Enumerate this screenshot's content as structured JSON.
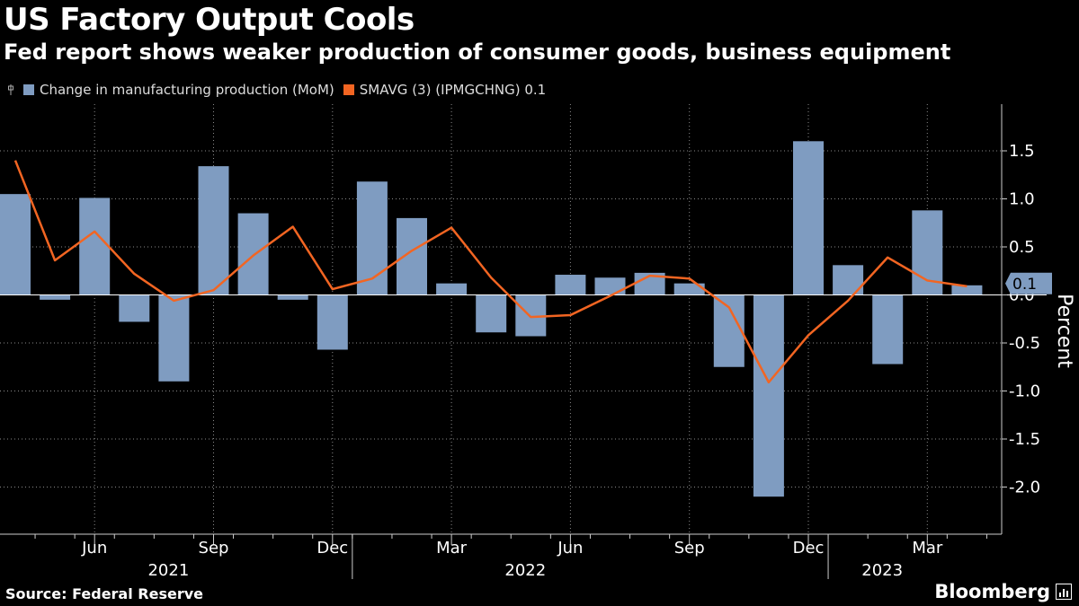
{
  "header": {
    "title": "US Factory Output Cools",
    "subtitle": "Fed report shows weaker production of consumer goods, business equipment"
  },
  "legend": {
    "series1": "Change in manufacturing production (MoM)",
    "series2": "SMAVG (3) (IPMGCHNG) 0.1"
  },
  "footer": {
    "source": "Source: Federal Reserve",
    "brand": "Bloomberg"
  },
  "colors": {
    "bar": "#7f9cc1",
    "line": "#f26522",
    "grid": "#8a8a8a",
    "bg": "#000000"
  },
  "chart_data": {
    "type": "bar",
    "title": "US Factory Output Cools",
    "ylabel": "Percent",
    "ylim": [
      -2.5,
      2.0
    ],
    "yticks": [
      1.5,
      1.0,
      0.5,
      0.0,
      -0.5,
      -1.0,
      -1.5,
      -2.0
    ],
    "ytick_labels": [
      "1.5",
      "1.0",
      "0.5",
      "0.0",
      "-0.5",
      "-1.0",
      "-1.5",
      "-2.0"
    ],
    "months": [
      "2021-04",
      "2021-05",
      "2021-06",
      "2021-07",
      "2021-08",
      "2021-09",
      "2021-10",
      "2021-11",
      "2021-12",
      "2022-01",
      "2022-02",
      "2022-03",
      "2022-04",
      "2022-05",
      "2022-06",
      "2022-07",
      "2022-08",
      "2022-09",
      "2022-10",
      "2022-11",
      "2022-12",
      "2023-01",
      "2023-02",
      "2023-03",
      "2023-04"
    ],
    "xticks": [
      {
        "month": "2021-06",
        "label": "Jun"
      },
      {
        "month": "2021-09",
        "label": "Sep"
      },
      {
        "month": "2021-12",
        "label": "Dec"
      },
      {
        "month": "2022-03",
        "label": "Mar"
      },
      {
        "month": "2022-06",
        "label": "Jun"
      },
      {
        "month": "2022-09",
        "label": "Sep"
      },
      {
        "month": "2022-12",
        "label": "Dec"
      },
      {
        "month": "2023-03",
        "label": "Mar"
      }
    ],
    "year_labels": [
      {
        "label": "2021",
        "month": "2021-08"
      },
      {
        "label": "2022",
        "month": "2022-05"
      },
      {
        "label": "2023",
        "month": "2023-02"
      }
    ],
    "series": [
      {
        "name": "Change in manufacturing production (MoM)",
        "kind": "bar",
        "values": [
          1.05,
          -0.05,
          1.01,
          -0.28,
          -0.9,
          1.34,
          0.85,
          -0.05,
          -0.57,
          1.18,
          0.8,
          0.12,
          -0.39,
          -0.43,
          0.21,
          0.18,
          0.23,
          0.12,
          -0.75,
          -2.1,
          1.6,
          0.31,
          -0.72,
          0.88,
          0.1
        ]
      },
      {
        "name": "SMAVG (3) (IPMGCHNG) 0.1",
        "kind": "line",
        "values": [
          1.4,
          0.36,
          0.66,
          0.22,
          -0.06,
          0.05,
          0.41,
          0.71,
          0.06,
          0.17,
          0.46,
          0.7,
          0.18,
          -0.23,
          -0.21,
          -0.01,
          0.2,
          0.17,
          -0.13,
          -0.91,
          -0.42,
          -0.06,
          0.39,
          0.15,
          0.09
        ]
      }
    ],
    "last_value_label": "0.1"
  }
}
